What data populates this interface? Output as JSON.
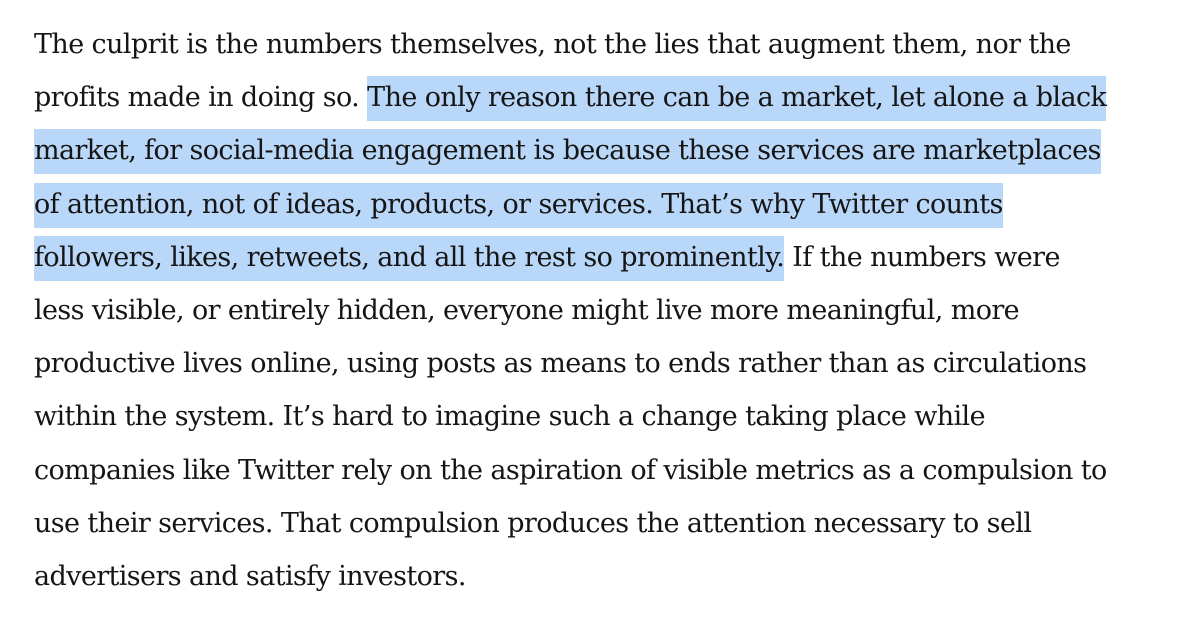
{
  "article": {
    "lines": [
      {
        "before": "The culprit is the numbers themselves, not the lies that augment them, nor the",
        "highlight": "",
        "after": ""
      },
      {
        "before": "profits made in doing so. ",
        "highlight": "The only reason there can be a market, let alone a black",
        "after": ""
      },
      {
        "before": "",
        "highlight": "market, for social-media engagement is because these services are marketplaces",
        "after": ""
      },
      {
        "before": "",
        "highlight": "of attention, not of ideas, products, or services. That’s why Twitter counts",
        "after": ""
      },
      {
        "before": "",
        "highlight": "followers, likes, retweets, and all the rest so prominently.",
        "after": " If the numbers were"
      },
      {
        "before": "less visible, or entirely hidden, everyone might live more meaningful, more",
        "highlight": "",
        "after": ""
      },
      {
        "before": "productive lives online, using posts as means to ends rather than as circulations",
        "highlight": "",
        "after": ""
      },
      {
        "before": "within the system. It’s hard to imagine such a change taking place while",
        "highlight": "",
        "after": ""
      },
      {
        "before": "companies like Twitter rely on the aspiration of visible metrics as a compulsion to",
        "highlight": "",
        "after": ""
      },
      {
        "before": "use their services. That compulsion produces the attention necessary to sell",
        "highlight": "",
        "after": ""
      },
      {
        "before": "advertisers and satisfy investors.",
        "highlight": "",
        "after": ""
      }
    ]
  },
  "colors": {
    "text": "#151515",
    "selection": "#b9d7f8",
    "background": "#ffffff"
  }
}
